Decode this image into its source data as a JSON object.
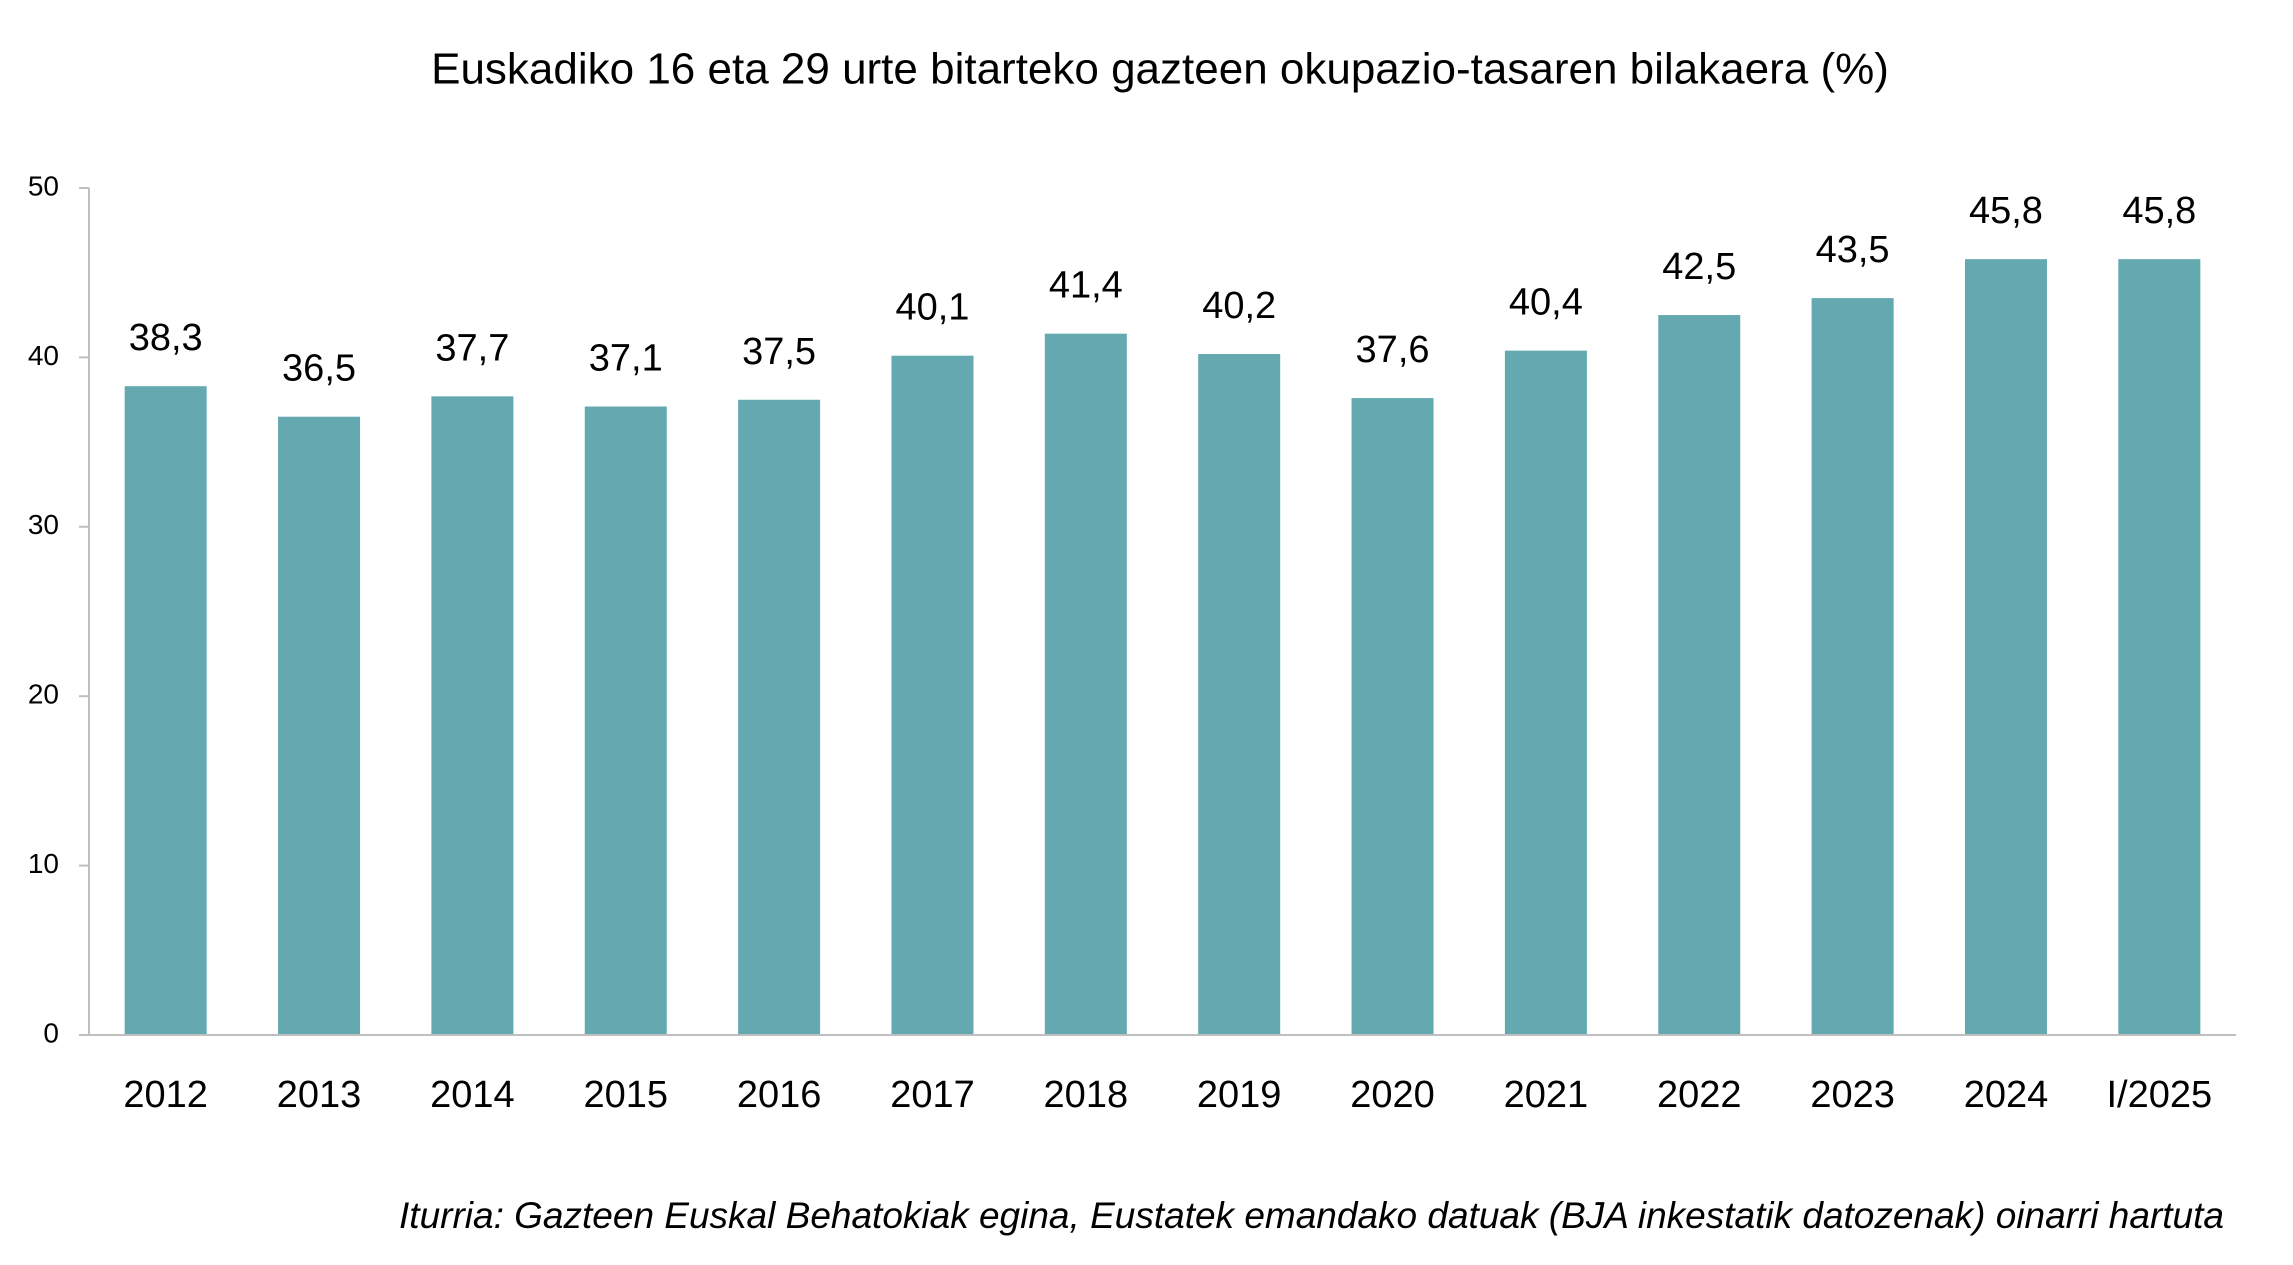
{
  "chart_data": {
    "type": "bar",
    "title": "Euskadiko 16 eta 29 urte bitarteko gazteen okupazio-tasaren bilakaera (%)",
    "categories": [
      "2012",
      "2013",
      "2014",
      "2015",
      "2016",
      "2017",
      "2018",
      "2019",
      "2020",
      "2021",
      "2022",
      "2023",
      "2024",
      "I/2025"
    ],
    "values": [
      38.3,
      36.5,
      37.7,
      37.1,
      37.5,
      40.1,
      41.4,
      40.2,
      37.6,
      40.4,
      42.5,
      43.5,
      45.8,
      45.8
    ],
    "value_labels": [
      "38,3",
      "36,5",
      "37,7",
      "37,1",
      "37,5",
      "40,1",
      "41,4",
      "40,2",
      "37,6",
      "40,4",
      "42,5",
      "43,5",
      "45,8",
      "45,8"
    ],
    "color": "#64a9b0",
    "ylim": [
      0,
      50
    ],
    "yticks": [
      0,
      10,
      20,
      30,
      40,
      50
    ],
    "grid": false,
    "source": "Iturria: Gazteen Euskal Behatokiak egina, Eustatek emandako datuak (BJA inkestatik datozenak) oinarri hartuta"
  }
}
